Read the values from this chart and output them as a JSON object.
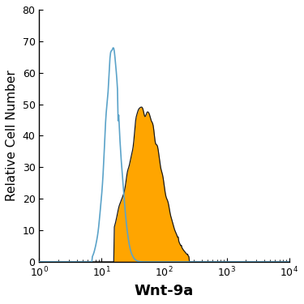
{
  "xlabel": "Wnt-9a",
  "ylabel": "Relative Cell Number",
  "xlabel_fontsize": 13,
  "ylabel_fontsize": 11,
  "xlim": [
    1,
    10000
  ],
  "ylim": [
    0,
    80
  ],
  "yticks": [
    0,
    10,
    20,
    30,
    40,
    50,
    60,
    70,
    80
  ],
  "blue_color": "#5ba3c9",
  "orange_color": "#FFA500",
  "dark_line_color": "#1a1a1a",
  "blue_peak_log": 1.18,
  "blue_peak_val": 66,
  "blue_sigma_log": 0.12,
  "orange_peak_log": 1.72,
  "orange_peak_val": 48,
  "orange_sigma_log": 0.28,
  "figsize": [
    3.75,
    3.75
  ],
  "dpi": 100
}
